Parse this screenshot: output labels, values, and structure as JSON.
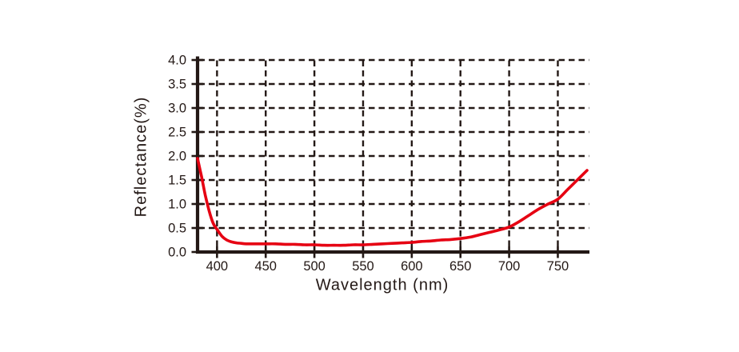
{
  "figure": {
    "background": "#ffffff"
  },
  "chart_data": {
    "type": "line",
    "title": "",
    "xlabel": "Wavelength (nm)",
    "ylabel": "Reflectance(%)",
    "xlim": [
      380,
      780
    ],
    "ylim": [
      0,
      4
    ],
    "x_ticks": [
      400,
      450,
      500,
      550,
      600,
      650,
      700,
      750
    ],
    "y_ticks": [
      0,
      0.5,
      1,
      1.5,
      2,
      2.5,
      3,
      3.5,
      4
    ],
    "y_tick_decimals": 1,
    "grid": {
      "style": "dashed",
      "color": "#231815"
    },
    "legend": "none",
    "colors": {
      "axis": "#231815",
      "text": "#231815",
      "series": "#e60012"
    },
    "series": [
      {
        "name": "Reflectance",
        "color": "#e60012",
        "x": [
          380,
          384,
          388,
          392,
          396,
          400,
          405,
          410,
          415,
          420,
          425,
          430,
          440,
          450,
          460,
          470,
          480,
          490,
          500,
          510,
          520,
          530,
          540,
          550,
          560,
          570,
          580,
          590,
          600,
          610,
          620,
          630,
          640,
          650,
          660,
          670,
          680,
          690,
          700,
          710,
          720,
          730,
          740,
          750,
          760,
          770,
          780
        ],
        "y": [
          1.95,
          1.58,
          1.18,
          0.85,
          0.6,
          0.47,
          0.33,
          0.25,
          0.21,
          0.19,
          0.18,
          0.17,
          0.17,
          0.17,
          0.17,
          0.16,
          0.16,
          0.15,
          0.15,
          0.14,
          0.14,
          0.14,
          0.15,
          0.15,
          0.16,
          0.17,
          0.18,
          0.19,
          0.2,
          0.22,
          0.23,
          0.25,
          0.26,
          0.28,
          0.31,
          0.36,
          0.41,
          0.46,
          0.52,
          0.63,
          0.76,
          0.89,
          1.0,
          1.1,
          1.3,
          1.5,
          1.7
        ]
      }
    ]
  }
}
